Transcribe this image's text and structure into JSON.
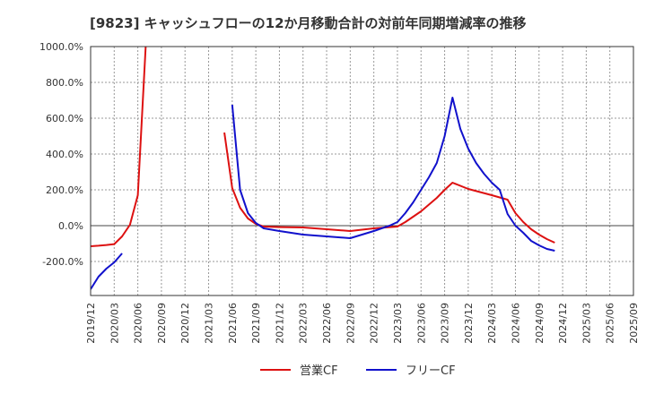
{
  "chart_data": {
    "type": "line",
    "title": "[9823]  キャッシュフローの12か月移動合計の対前年同期増減率の推移",
    "xlabel": "",
    "ylabel": "",
    "ylim": [
      -390,
      1000
    ],
    "y_ticks": [
      -200,
      0,
      200,
      400,
      600,
      800,
      1000
    ],
    "y_tick_labels": [
      "-200.0%",
      "0.0%",
      "200.0%",
      "400.0%",
      "600.0%",
      "800.0%",
      "1000.0%"
    ],
    "x_range_months": [
      0,
      69
    ],
    "x_ticks": [
      0,
      3,
      6,
      9,
      12,
      15,
      18,
      21,
      24,
      27,
      30,
      33,
      36,
      39,
      42,
      45,
      48,
      51,
      54,
      57,
      60,
      63,
      66,
      69
    ],
    "x_tick_labels": [
      "2019/12",
      "2020/03",
      "2020/06",
      "2020/09",
      "2020/12",
      "2021/03",
      "2021/06",
      "2021/09",
      "2021/12",
      "2022/03",
      "2022/06",
      "2022/09",
      "2022/12",
      "2023/03",
      "2023/06",
      "2023/09",
      "2023/12",
      "2024/03",
      "2024/06",
      "2024/09",
      "2024/12",
      "2025/03",
      "2025/06",
      "2025/09"
    ],
    "grid": true,
    "legend_position": "bottom-center",
    "series": [
      {
        "name": "営業CF",
        "color": "#dd1111",
        "segments": [
          [
            [
              0,
              -115
            ],
            [
              1,
              -112
            ],
            [
              2,
              -108
            ],
            [
              3,
              -103
            ],
            [
              4,
              -60
            ],
            [
              5,
              5
            ],
            [
              6,
              170
            ],
            [
              7,
              1000
            ]
          ],
          [
            [
              17,
              520
            ],
            [
              18,
              210
            ],
            [
              19,
              100
            ],
            [
              20,
              40
            ],
            [
              21,
              10
            ],
            [
              22,
              -5
            ],
            [
              24,
              -8
            ],
            [
              27,
              -10
            ],
            [
              30,
              -20
            ],
            [
              33,
              -30
            ],
            [
              36,
              -15
            ],
            [
              39,
              -5
            ],
            [
              40,
              20
            ],
            [
              42,
              80
            ],
            [
              44,
              155
            ],
            [
              45,
              200
            ],
            [
              46,
              240
            ],
            [
              48,
              205
            ],
            [
              51,
              170
            ],
            [
              53,
              145
            ],
            [
              54,
              70
            ],
            [
              55,
              20
            ],
            [
              56,
              -20
            ],
            [
              57,
              -50
            ],
            [
              58,
              -75
            ],
            [
              59,
              -95
            ]
          ]
        ]
      },
      {
        "name": "フリーCF",
        "color": "#1111cc",
        "segments": [
          [
            [
              0,
              -355
            ],
            [
              1,
              -285
            ],
            [
              2,
              -240
            ],
            [
              3,
              -205
            ],
            [
              4,
              -155
            ]
          ],
          [
            [
              18,
              675
            ],
            [
              19,
              200
            ],
            [
              20,
              70
            ],
            [
              21,
              15
            ],
            [
              22,
              -15
            ],
            [
              24,
              -30
            ],
            [
              27,
              -50
            ],
            [
              30,
              -60
            ],
            [
              33,
              -70
            ],
            [
              36,
              -30
            ],
            [
              38,
              0
            ],
            [
              39,
              20
            ],
            [
              40,
              70
            ],
            [
              41,
              130
            ],
            [
              42,
              200
            ],
            [
              43,
              270
            ],
            [
              44,
              350
            ],
            [
              45,
              500
            ],
            [
              46,
              715
            ],
            [
              47,
              540
            ],
            [
              48,
              430
            ],
            [
              49,
              350
            ],
            [
              50,
              290
            ],
            [
              51,
              240
            ],
            [
              52,
              200
            ],
            [
              53,
              65
            ],
            [
              54,
              0
            ],
            [
              55,
              -40
            ],
            [
              56,
              -85
            ],
            [
              57,
              -110
            ],
            [
              58,
              -130
            ],
            [
              59,
              -140
            ]
          ]
        ]
      }
    ]
  }
}
